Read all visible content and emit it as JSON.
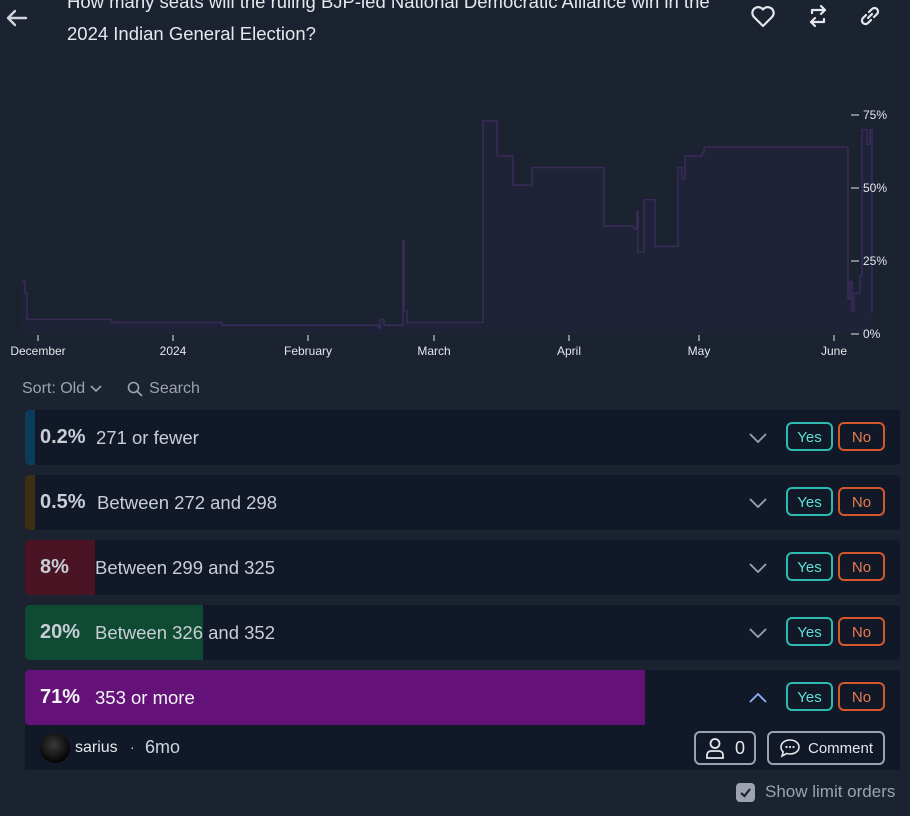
{
  "header": {
    "title": "How many seats will the ruling BJP-led National Democratic Alliance win in the 2024 Indian General Election?",
    "icons": [
      "back-arrow-icon",
      "heart-icon",
      "repost-icon",
      "link-icon"
    ]
  },
  "chart_data": {
    "type": "area",
    "x_ticks": [
      "December",
      "2024",
      "February",
      "March",
      "April",
      "May",
      "June"
    ],
    "y_ticks": [
      "0%",
      "25%",
      "50%",
      "75%"
    ],
    "ylim": [
      0,
      75
    ],
    "fill_color": "#1f2337",
    "line_color": "#3a2b5a",
    "series": [
      {
        "x": [
          0,
          1,
          3,
          5,
          30,
          60,
          90,
          130,
          170,
          200,
          270,
          300,
          340,
          357,
          358,
          361,
          362,
          365,
          380,
          381,
          382,
          385,
          460,
          461,
          475,
          476,
          490,
          491,
          508,
          510,
          580,
          582,
          600,
          612,
          615,
          616,
          620,
          622,
          630,
          633,
          655,
          656,
          660,
          663,
          680,
          682,
          700,
          825,
          826,
          828,
          830,
          832,
          838,
          840,
          842,
          845,
          848,
          850
        ],
        "y": [
          18,
          18,
          14,
          5,
          5,
          5,
          4,
          4,
          4,
          3,
          3,
          3,
          3,
          2,
          5,
          5,
          3,
          3,
          3,
          32,
          8,
          4,
          4,
          73,
          61,
          61,
          61,
          51,
          51,
          57,
          57,
          37,
          37,
          36,
          42,
          28,
          28,
          46,
          46,
          30,
          30,
          57,
          53,
          61,
          62,
          64,
          64,
          64,
          12,
          18,
          8,
          14,
          20,
          70,
          70,
          65,
          70,
          7
        ]
      }
    ]
  },
  "toolbar": {
    "sort_label": "Sort: Old",
    "search_label": "Search"
  },
  "answers": [
    {
      "pct": "0.2%",
      "pct_value": 0.2,
      "label": "271 or fewer",
      "color": "#0d3b5c"
    },
    {
      "pct": "0.5%",
      "pct_value": 0.5,
      "label": "Between 272 and 298",
      "color": "#3d2f12"
    },
    {
      "pct": "8%",
      "pct_value": 8,
      "label": "Between 299 and 325",
      "color": "#4a1424"
    },
    {
      "pct": "20%",
      "pct_value": 20,
      "label": "Between 326 and 352",
      "color": "#0f4a33"
    },
    {
      "pct": "71%",
      "pct_value": 71,
      "label": "353 or more",
      "color": "#651278"
    }
  ],
  "buttons": {
    "yes": "Yes",
    "no": "No"
  },
  "expanded": {
    "username": "sarius",
    "separator": "·",
    "time": "6mo",
    "bettors_count": "0",
    "comment_label": "Comment"
  },
  "limit_orders_label": "Show limit orders"
}
